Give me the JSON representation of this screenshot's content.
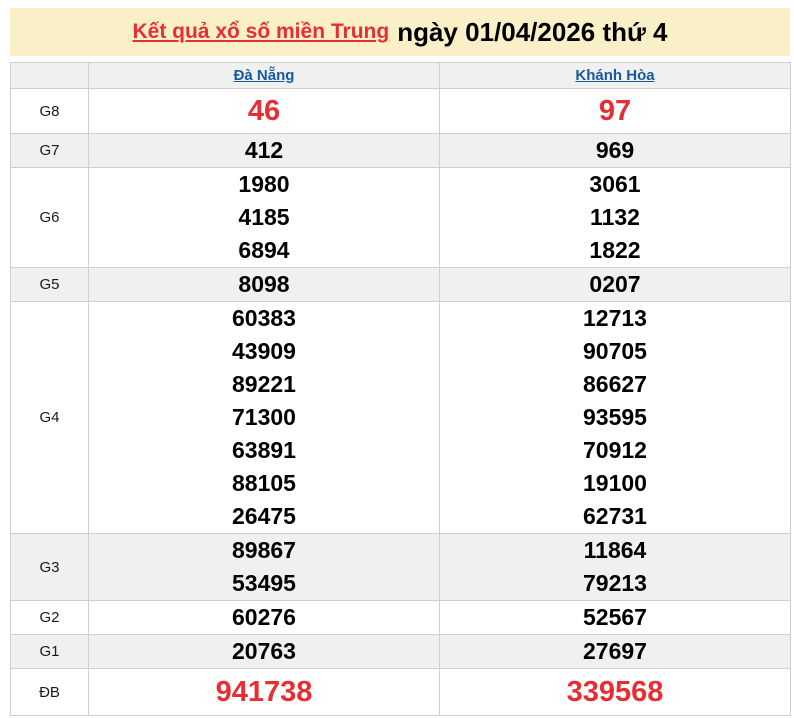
{
  "title": {
    "link": "Kết quả xổ số miền Trung",
    "rest": "ngày 01/04/2026 thứ 4"
  },
  "colors": {
    "banner_background": "#faf0c8",
    "accent_red": "#e62e33",
    "link_blue": "#155a9e",
    "stripe_background": "#f0f0f0",
    "border": "#cfcfcf"
  },
  "table": {
    "corner_label": "",
    "columns": [
      "Đà Nẵng",
      "Khánh Hòa"
    ],
    "rows": [
      {
        "label": "G8",
        "emphasis": true,
        "values": [
          [
            "46"
          ],
          [
            "97"
          ]
        ]
      },
      {
        "label": "G7",
        "emphasis": false,
        "values": [
          [
            "412"
          ],
          [
            "969"
          ]
        ]
      },
      {
        "label": "G6",
        "emphasis": false,
        "values": [
          [
            "1980",
            "4185",
            "6894"
          ],
          [
            "3061",
            "1132",
            "1822"
          ]
        ]
      },
      {
        "label": "G5",
        "emphasis": false,
        "values": [
          [
            "8098"
          ],
          [
            "0207"
          ]
        ]
      },
      {
        "label": "G4",
        "emphasis": false,
        "values": [
          [
            "60383",
            "43909",
            "89221",
            "71300",
            "63891",
            "88105",
            "26475"
          ],
          [
            "12713",
            "90705",
            "86627",
            "93595",
            "70912",
            "19100",
            "62731"
          ]
        ]
      },
      {
        "label": "G3",
        "emphasis": false,
        "values": [
          [
            "89867",
            "53495"
          ],
          [
            "11864",
            "79213"
          ]
        ]
      },
      {
        "label": "G2",
        "emphasis": false,
        "values": [
          [
            "60276"
          ],
          [
            "52567"
          ]
        ]
      },
      {
        "label": "G1",
        "emphasis": false,
        "values": [
          [
            "20763"
          ],
          [
            "27697"
          ]
        ]
      },
      {
        "label": "ĐB",
        "emphasis": true,
        "values": [
          [
            "941738"
          ],
          [
            "339568"
          ]
        ]
      }
    ]
  }
}
